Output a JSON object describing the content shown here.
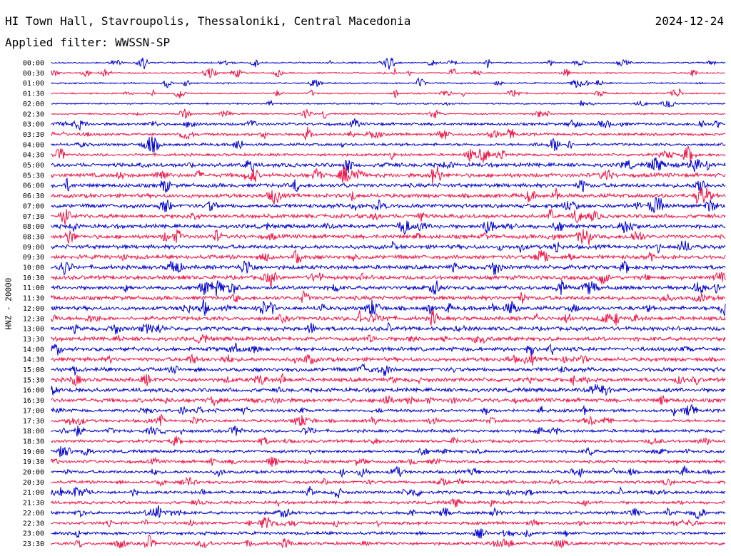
{
  "header": {
    "station": "HI Town Hall, Stavroupolis, Thessaloniki, Central Macedonia",
    "date": "2024-12-24",
    "filter": "Applied filter: WWSSN-SP"
  },
  "channel_label": "HNZ - 20000",
  "colors": {
    "even_row": "#0000cc",
    "odd_row": "#ee1144",
    "text": "#000000"
  },
  "rows": [
    {
      "time": "00:00",
      "color": "blue"
    },
    {
      "time": "00:30",
      "color": "red"
    },
    {
      "time": "01:00",
      "color": "blue"
    },
    {
      "time": "01:30",
      "color": "red"
    },
    {
      "time": "02:00",
      "color": "blue"
    },
    {
      "time": "02:30",
      "color": "red"
    },
    {
      "time": "03:00",
      "color": "blue"
    },
    {
      "time": "03:30",
      "color": "red"
    },
    {
      "time": "04:00",
      "color": "blue"
    },
    {
      "time": "04:30",
      "color": "red"
    },
    {
      "time": "05:00",
      "color": "blue"
    },
    {
      "time": "05:30",
      "color": "red"
    },
    {
      "time": "06:00",
      "color": "blue"
    },
    {
      "time": "06:30",
      "color": "red"
    },
    {
      "time": "07:00",
      "color": "blue"
    },
    {
      "time": "07:30",
      "color": "red"
    },
    {
      "time": "08:00",
      "color": "blue"
    },
    {
      "time": "08:30",
      "color": "red"
    },
    {
      "time": "09:00",
      "color": "blue"
    },
    {
      "time": "09:30",
      "color": "red"
    },
    {
      "time": "10:00",
      "color": "blue"
    },
    {
      "time": "10:30",
      "color": "red"
    },
    {
      "time": "11:00",
      "color": "blue"
    },
    {
      "time": "11:30",
      "color": "red"
    },
    {
      "time": "12:00",
      "color": "blue"
    },
    {
      "time": "12:30",
      "color": "red"
    },
    {
      "time": "13:00",
      "color": "blue"
    },
    {
      "time": "13:30",
      "color": "red"
    },
    {
      "time": "14:00",
      "color": "blue"
    },
    {
      "time": "14:30",
      "color": "red"
    },
    {
      "time": "15:00",
      "color": "blue"
    },
    {
      "time": "15:30",
      "color": "red"
    },
    {
      "time": "16:00",
      "color": "blue"
    },
    {
      "time": "16:30",
      "color": "red"
    },
    {
      "time": "17:00",
      "color": "blue"
    },
    {
      "time": "17:30",
      "color": "red"
    },
    {
      "time": "18:00",
      "color": "blue"
    },
    {
      "time": "18:30",
      "color": "red"
    },
    {
      "time": "19:00",
      "color": "blue"
    },
    {
      "time": "19:30",
      "color": "red"
    },
    {
      "time": "20:00",
      "color": "blue"
    },
    {
      "time": "20:30",
      "color": "red"
    },
    {
      "time": "21:00",
      "color": "blue"
    },
    {
      "time": "21:30",
      "color": "red"
    },
    {
      "time": "22:00",
      "color": "blue"
    },
    {
      "time": "22:30",
      "color": "red"
    },
    {
      "time": "23:00",
      "color": "blue"
    },
    {
      "time": "23:30",
      "color": "red"
    }
  ],
  "signal": {
    "daytime_noise_level": "high",
    "night_noise_level": "low"
  }
}
